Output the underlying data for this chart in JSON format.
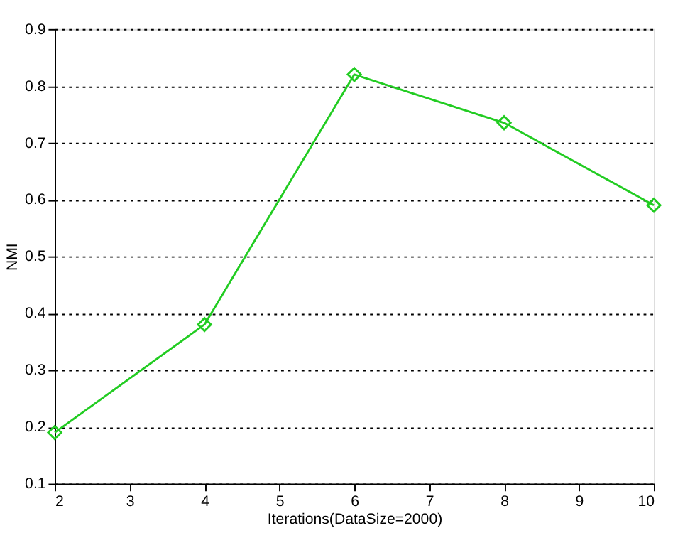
{
  "chart_data": {
    "type": "line",
    "xlabel": "Iterations(DataSize=2000)",
    "ylabel": "NMI",
    "x": [
      2,
      4,
      6,
      8,
      10
    ],
    "series": [
      {
        "color": "#22cc22",
        "values": [
          0.19,
          0.38,
          0.82,
          0.735,
          0.59
        ]
      }
    ],
    "xlim": [
      2,
      10
    ],
    "xticks": [
      2,
      3,
      4,
      5,
      6,
      7,
      8,
      9,
      10
    ],
    "ylim": [
      0.1,
      0.9
    ],
    "yticks": [
      0.1,
      0.2,
      0.3,
      0.4,
      0.5,
      0.6,
      0.7,
      0.8,
      0.9
    ],
    "grid": "y",
    "marker": "diamond",
    "line_style": "solid"
  }
}
